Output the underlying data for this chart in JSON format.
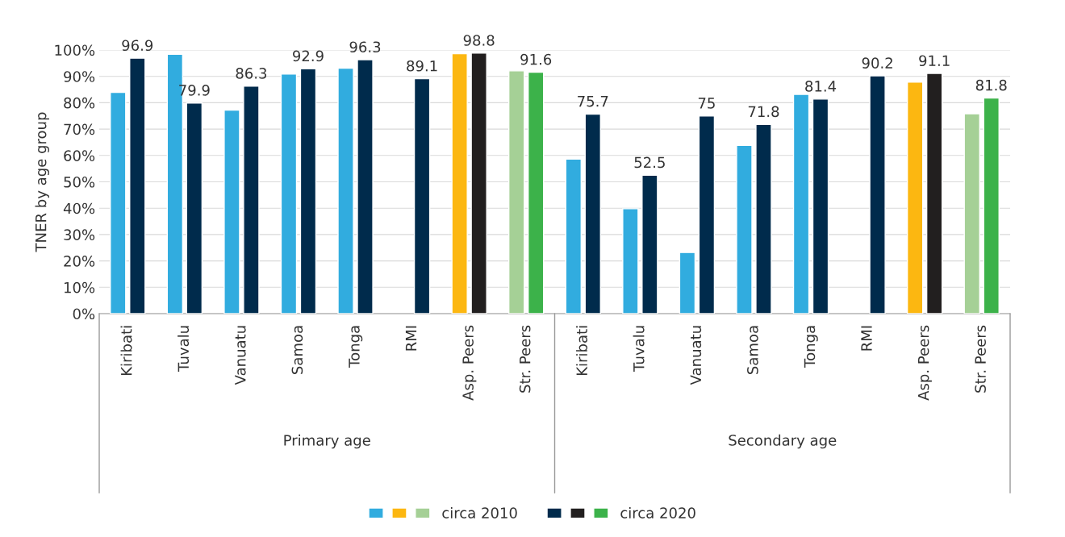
{
  "chart_data": {
    "type": "bar",
    "ylabel": "TNER by age group",
    "categories": [
      "Kiribati",
      "Tuvalu",
      "Vanuatu",
      "Samoa",
      "Tonga",
      "RMI",
      "Asp. Peers",
      "Str. Peers",
      "Kiribati",
      "Tuvalu",
      "Vanuatu",
      "Samoa",
      "Tonga",
      "RMI",
      "Asp. Peers",
      "Str. Peers"
    ],
    "series": [
      {
        "name": "circa 2010",
        "colors": [
          "#31acdf",
          "#31acdf",
          "#31acdf",
          "#31acdf",
          "#31acdf",
          "#31acdf",
          "#fcb711",
          "#a5d096",
          "#31acdf",
          "#31acdf",
          "#31acdf",
          "#31acdf",
          "#31acdf",
          "#31acdf",
          "#fcb711",
          "#a5d096"
        ],
        "values": [
          83.9,
          98.4,
          77.2,
          90.9,
          93.1,
          null,
          98.6,
          92.1,
          58.6,
          39.8,
          23.2,
          63.8,
          83.2,
          null,
          87.8,
          75.8
        ]
      },
      {
        "name": "circa 2020",
        "colors": [
          "#002b4c",
          "#002b4c",
          "#002b4c",
          "#002b4c",
          "#002b4c",
          "#002b4c",
          "#221f1f",
          "#3cb24a",
          "#002b4c",
          "#002b4c",
          "#002b4c",
          "#002b4c",
          "#002b4c",
          "#002b4c",
          "#221f1f",
          "#3cb24a"
        ],
        "values": [
          96.9,
          79.9,
          86.3,
          92.9,
          96.3,
          89.1,
          98.8,
          91.6,
          75.7,
          52.5,
          75,
          71.8,
          81.4,
          90.2,
          91.1,
          81.8
        ],
        "value_labels": [
          "96.9",
          "79.9",
          "86.3",
          "92.9",
          "96.3",
          "89.1",
          "98.8",
          "91.6",
          "75.7",
          "52.5",
          "75",
          "71.8",
          "81.4",
          "90.2",
          "91.1",
          "81.8"
        ]
      }
    ],
    "ylim": [
      0,
      100
    ],
    "yticks": [
      {
        "value": 0,
        "label": "0%"
      },
      {
        "value": 10,
        "label": "10%"
      },
      {
        "value": 20,
        "label": "20%"
      },
      {
        "value": 30,
        "label": "30%"
      },
      {
        "value": 40,
        "label": "40%"
      },
      {
        "value": 50,
        "label": "50%"
      },
      {
        "value": 60,
        "label": "60%"
      },
      {
        "value": 70,
        "label": "70%"
      },
      {
        "value": 80,
        "label": "80%"
      },
      {
        "value": 90,
        "label": "90%"
      },
      {
        "value": 100,
        "label": "100%"
      }
    ],
    "annotations": [
      {
        "text": "Primary age"
      },
      {
        "text": "Secondary age"
      }
    ],
    "grid": "y",
    "legend": "bottom"
  }
}
